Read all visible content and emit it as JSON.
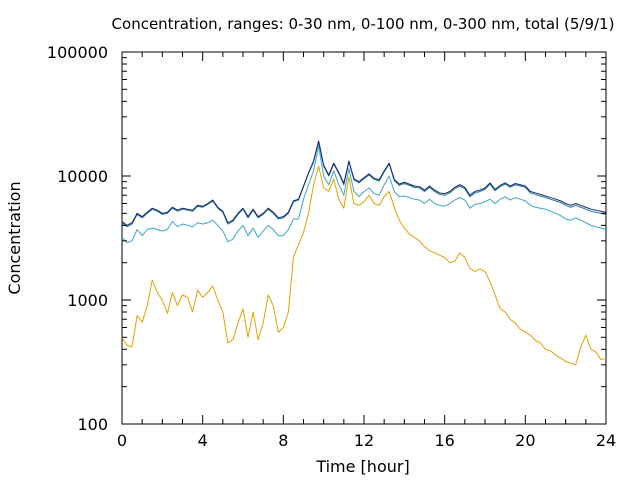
{
  "chart_data": {
    "type": "line",
    "title": "Concentration, ranges: 0-30 nm, 0-100 nm, 0-300 nm, total (5/9/1)",
    "xlabel": "Time [hour]",
    "ylabel": "Concentration",
    "xlim": [
      0,
      24
    ],
    "ylim": [
      100,
      100000
    ],
    "yscale": "log",
    "xticks": [
      0,
      4,
      8,
      12,
      16,
      20,
      24
    ],
    "xtick_labels": [
      "0",
      "4",
      "8",
      "12",
      "16",
      "20",
      "24"
    ],
    "yticks": [
      100,
      1000,
      10000,
      100000
    ],
    "ytick_labels": [
      "100",
      "1000",
      "10000",
      "100000"
    ],
    "grid": false,
    "legend": "none",
    "series": [
      {
        "color": "#e6a000",
        "x": [
          0,
          0.25,
          0.5,
          0.75,
          1.0,
          1.25,
          1.5,
          1.75,
          2.0,
          2.25,
          2.5,
          2.75,
          3.0,
          3.25,
          3.5,
          3.75,
          4.0,
          4.25,
          4.5,
          4.75,
          5.0,
          5.25,
          5.5,
          5.75,
          6.0,
          6.25,
          6.5,
          6.75,
          7.0,
          7.25,
          7.5,
          7.75,
          8.0,
          8.25,
          8.5,
          8.75,
          9.0,
          9.25,
          9.5,
          9.75,
          10.0,
          10.25,
          10.5,
          10.75,
          11.0,
          11.25,
          11.5,
          11.75,
          12.0,
          12.25,
          12.5,
          12.75,
          13.0,
          13.25,
          13.5,
          13.75,
          14.0,
          14.25,
          14.5,
          14.75,
          15.0,
          15.25,
          15.5,
          15.75,
          16.0,
          16.25,
          16.5,
          16.75,
          17.0,
          17.25,
          17.5,
          17.75,
          18.0,
          18.25,
          18.5,
          18.75,
          19.0,
          19.25,
          19.5,
          19.75,
          20.0,
          20.25,
          20.5,
          20.75,
          21.0,
          21.25,
          21.5,
          21.75,
          22.0,
          22.25,
          22.5,
          22.75,
          23.0,
          23.25,
          23.5,
          23.75,
          24.0
        ],
        "y": [
          500,
          430,
          420,
          750,
          660,
          900,
          1450,
          1150,
          1000,
          780,
          1150,
          900,
          1100,
          1050,
          800,
          1200,
          1050,
          1150,
          1300,
          1000,
          800,
          450,
          480,
          650,
          850,
          500,
          800,
          480,
          650,
          1100,
          900,
          550,
          600,
          800,
          2200,
          2800,
          3500,
          5000,
          8500,
          12000,
          8000,
          7500,
          9500,
          6500,
          5500,
          9800,
          6000,
          5800,
          6200,
          7000,
          6000,
          5800,
          6800,
          7500,
          5600,
          4400,
          3800,
          3400,
          3200,
          3000,
          2700,
          2500,
          2400,
          2300,
          2200,
          2000,
          2050,
          2400,
          2200,
          1800,
          1700,
          1780,
          1700,
          1400,
          1100,
          850,
          800,
          700,
          650,
          580,
          550,
          520,
          470,
          450,
          400,
          390,
          360,
          340,
          320,
          310,
          300,
          420,
          520,
          400,
          380,
          330,
          340
        ]
      },
      {
        "color": "#3aa6c8",
        "x": [
          0,
          0.25,
          0.5,
          0.75,
          1.0,
          1.25,
          1.5,
          1.75,
          2.0,
          2.25,
          2.5,
          2.75,
          3.0,
          3.25,
          3.5,
          3.75,
          4.0,
          4.25,
          4.5,
          4.75,
          5.0,
          5.25,
          5.5,
          5.75,
          6.0,
          6.25,
          6.5,
          6.75,
          7.0,
          7.25,
          7.5,
          7.75,
          8.0,
          8.25,
          8.5,
          8.75,
          9.0,
          9.25,
          9.5,
          9.75,
          10.0,
          10.25,
          10.5,
          10.75,
          11.0,
          11.25,
          11.5,
          11.75,
          12.0,
          12.25,
          12.5,
          12.75,
          13.0,
          13.25,
          13.5,
          13.75,
          14.0,
          14.25,
          14.5,
          14.75,
          15.0,
          15.25,
          15.5,
          15.75,
          16.0,
          16.25,
          16.5,
          16.75,
          17.0,
          17.25,
          17.5,
          17.75,
          18.0,
          18.25,
          18.5,
          18.75,
          19.0,
          19.25,
          19.5,
          19.75,
          20.0,
          20.25,
          20.5,
          20.75,
          21.0,
          21.25,
          21.5,
          21.75,
          22.0,
          22.25,
          22.5,
          22.75,
          23.0,
          23.25,
          23.5,
          23.75,
          24.0
        ],
        "y": [
          3200,
          2900,
          3000,
          3700,
          3300,
          3700,
          3800,
          3700,
          3600,
          3700,
          4300,
          3900,
          4100,
          4000,
          3900,
          4200,
          4100,
          4200,
          4400,
          4000,
          3600,
          2950,
          3100,
          3600,
          4000,
          3300,
          3800,
          3200,
          3600,
          4000,
          3700,
          3300,
          3300,
          3700,
          4500,
          4500,
          6500,
          8500,
          11000,
          17500,
          10000,
          8500,
          11000,
          8500,
          7000,
          11500,
          7500,
          6800,
          7500,
          8000,
          7200,
          7000,
          8500,
          10000,
          7500,
          6800,
          6900,
          6700,
          6500,
          6400,
          6000,
          6500,
          6000,
          5800,
          5700,
          6000,
          6400,
          6700,
          6400,
          5500,
          5900,
          6000,
          6200,
          6500,
          6000,
          6500,
          6800,
          6400,
          6700,
          6500,
          6300,
          5800,
          5600,
          5500,
          5400,
          5200,
          5000,
          4800,
          4500,
          4400,
          4600,
          4400,
          4200,
          4000,
          3900,
          3800,
          3700
        ]
      },
      {
        "color": "#1f7f87",
        "x": [
          0,
          0.25,
          0.5,
          0.75,
          1.0,
          1.25,
          1.5,
          1.75,
          2.0,
          2.25,
          2.5,
          2.75,
          3.0,
          3.25,
          3.5,
          3.75,
          4.0,
          4.25,
          4.5,
          4.75,
          5.0,
          5.25,
          5.5,
          5.75,
          6.0,
          6.25,
          6.5,
          6.75,
          7.0,
          7.25,
          7.5,
          7.75,
          8.0,
          8.25,
          8.5,
          8.75,
          9.0,
          9.25,
          9.5,
          9.75,
          10.0,
          10.25,
          10.5,
          10.75,
          11.0,
          11.25,
          11.5,
          11.75,
          12.0,
          12.25,
          12.5,
          12.75,
          13.0,
          13.25,
          13.5,
          13.75,
          14.0,
          14.25,
          14.5,
          14.75,
          15.0,
          15.25,
          15.5,
          15.75,
          16.0,
          16.25,
          16.5,
          16.75,
          17.0,
          17.25,
          17.5,
          17.75,
          18.0,
          18.25,
          18.5,
          18.75,
          19.0,
          19.25,
          19.5,
          19.75,
          20.0,
          20.25,
          20.5,
          20.75,
          21.0,
          21.25,
          21.5,
          21.75,
          22.0,
          22.25,
          22.5,
          22.75,
          23.0,
          23.25,
          23.5,
          23.75,
          24.0
        ],
        "y": [
          4200,
          3900,
          4100,
          4900,
          4600,
          5000,
          5400,
          5200,
          4900,
          5000,
          5500,
          5200,
          5400,
          5300,
          5200,
          5700,
          5600,
          5900,
          6300,
          5500,
          5100,
          4100,
          4300,
          4900,
          5400,
          4600,
          5300,
          4600,
          4900,
          5400,
          5000,
          4500,
          4600,
          5000,
          6200,
          6400,
          8200,
          10500,
          13000,
          19000,
          12000,
          10000,
          12500,
          10500,
          8500,
          13000,
          9300,
          8800,
          9500,
          10200,
          9400,
          9100,
          10800,
          12500,
          9200,
          8400,
          8700,
          8400,
          8100,
          8000,
          7500,
          8100,
          7500,
          7100,
          7000,
          7300,
          7900,
          8300,
          7900,
          6800,
          7300,
          7500,
          7800,
          8600,
          7600,
          8200,
          8600,
          8100,
          8500,
          8300,
          8100,
          7300,
          7100,
          6900,
          6700,
          6500,
          6300,
          6100,
          5800,
          5600,
          5800,
          5600,
          5400,
          5200,
          5100,
          5000,
          4900
        ]
      },
      {
        "color": "#1a237e",
        "x": [
          0,
          0.25,
          0.5,
          0.75,
          1.0,
          1.25,
          1.5,
          1.75,
          2.0,
          2.25,
          2.5,
          2.75,
          3.0,
          3.25,
          3.5,
          3.75,
          4.0,
          4.25,
          4.5,
          4.75,
          5.0,
          5.25,
          5.5,
          5.75,
          6.0,
          6.25,
          6.5,
          6.75,
          7.0,
          7.25,
          7.5,
          7.75,
          8.0,
          8.25,
          8.5,
          8.75,
          9.0,
          9.25,
          9.5,
          9.75,
          10.0,
          10.25,
          10.5,
          10.75,
          11.0,
          11.25,
          11.5,
          11.75,
          12.0,
          12.25,
          12.5,
          12.75,
          13.0,
          13.25,
          13.5,
          13.75,
          14.0,
          14.25,
          14.5,
          14.75,
          15.0,
          15.25,
          15.5,
          15.75,
          16.0,
          16.25,
          16.5,
          16.75,
          17.0,
          17.25,
          17.5,
          17.75,
          18.0,
          18.25,
          18.5,
          18.75,
          19.0,
          19.25,
          19.5,
          19.75,
          20.0,
          20.25,
          20.5,
          20.75,
          21.0,
          21.25,
          21.5,
          21.75,
          22.0,
          22.25,
          22.5,
          22.75,
          23.0,
          23.25,
          23.5,
          23.75,
          24.0
        ],
        "y": [
          4300,
          4000,
          4200,
          5000,
          4700,
          5100,
          5500,
          5300,
          5000,
          5100,
          5600,
          5300,
          5500,
          5400,
          5300,
          5800,
          5700,
          6000,
          6400,
          5600,
          5200,
          4200,
          4400,
          5000,
          5500,
          4700,
          5400,
          4700,
          5000,
          5500,
          5100,
          4600,
          4700,
          5100,
          6300,
          6500,
          8300,
          10600,
          13200,
          19200,
          12200,
          10200,
          12700,
          10700,
          8700,
          13200,
          9500,
          9000,
          9700,
          10400,
          9600,
          9300,
          11000,
          12700,
          9400,
          8600,
          8900,
          8600,
          8300,
          8200,
          7700,
          8300,
          7700,
          7300,
          7200,
          7500,
          8100,
          8500,
          8100,
          7000,
          7500,
          7700,
          8000,
          8800,
          7800,
          8400,
          8800,
          8300,
          8700,
          8500,
          8300,
          7500,
          7300,
          7100,
          6900,
          6700,
          6500,
          6300,
          6000,
          5800,
          6000,
          5800,
          5600,
          5400,
          5300,
          5200,
          5100
        ]
      }
    ]
  }
}
